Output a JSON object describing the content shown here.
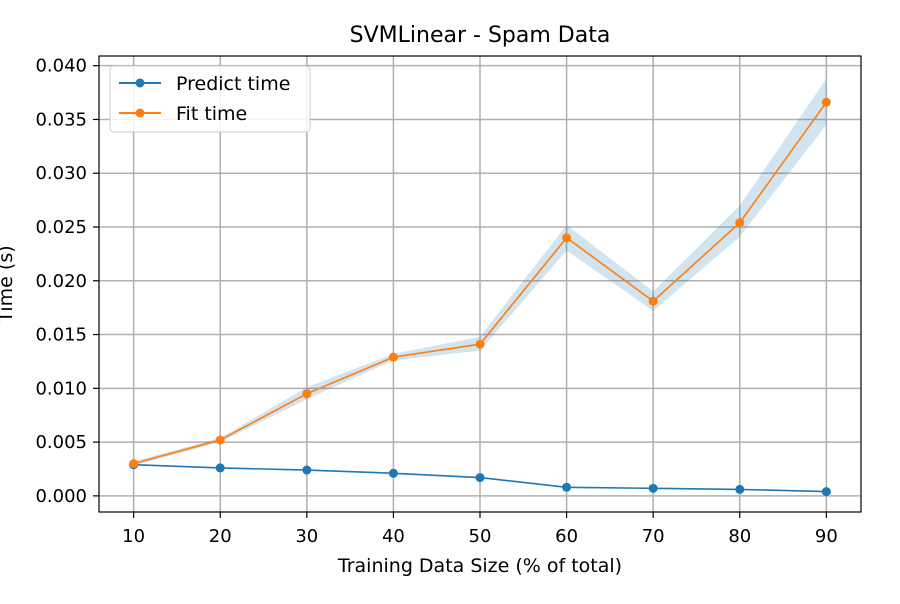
{
  "chart_data": {
    "type": "line",
    "title": "SVMLinear - Spam Data",
    "xlabel": "Training Data Size (% of total)",
    "ylabel": "Time (s)",
    "x": [
      10,
      20,
      30,
      40,
      50,
      60,
      70,
      80,
      90
    ],
    "xlim": [
      6,
      94
    ],
    "ylim": [
      -0.0015,
      0.0409
    ],
    "xticks": [
      10,
      20,
      30,
      40,
      50,
      60,
      70,
      80,
      90
    ],
    "yticks": [
      0.0,
      0.005,
      0.01,
      0.015,
      0.02,
      0.025,
      0.03,
      0.035,
      0.04
    ],
    "ytick_labels": [
      "0.000",
      "0.005",
      "0.010",
      "0.015",
      "0.020",
      "0.025",
      "0.030",
      "0.035",
      "0.040"
    ],
    "grid": true,
    "legend_position": "top-left",
    "series": [
      {
        "name": "Predict time",
        "color": "#1f77b4",
        "values": [
          0.0029,
          0.0026,
          0.0024,
          0.0021,
          0.0017,
          0.0008,
          0.0007,
          0.0006,
          0.0004
        ]
      },
      {
        "name": "Fit time",
        "color": "#ff7f0e",
        "values": [
          0.003,
          0.0052,
          0.0095,
          0.0129,
          0.0141,
          0.024,
          0.0181,
          0.0254,
          0.0366
        ],
        "band_color": "#1f77b4",
        "band_lower": [
          0.0028,
          0.005,
          0.009,
          0.0126,
          0.0135,
          0.0228,
          0.0172,
          0.0241,
          0.0345
        ],
        "band_upper": [
          0.0032,
          0.0054,
          0.0101,
          0.0132,
          0.0148,
          0.0252,
          0.019,
          0.027,
          0.0388
        ]
      }
    ]
  }
}
